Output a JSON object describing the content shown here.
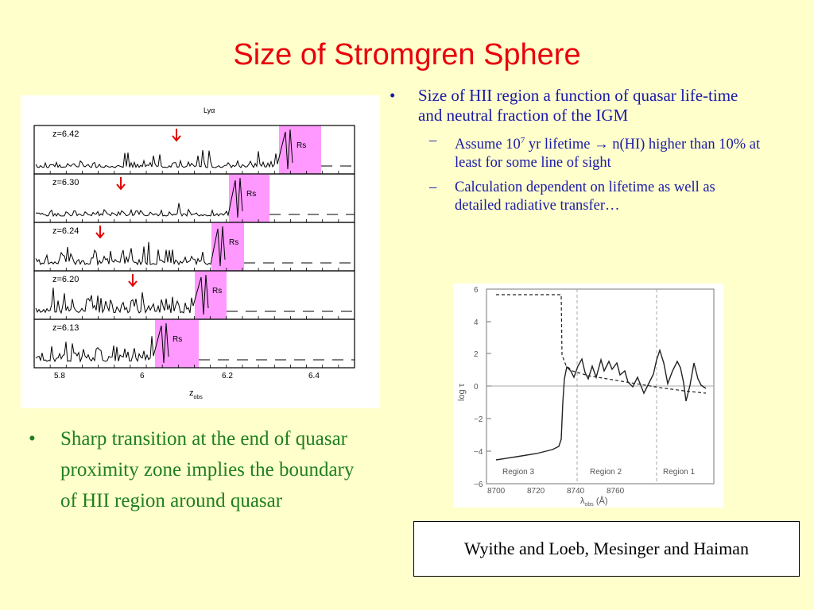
{
  "slide": {
    "title": "Size of Stromgren Sphere",
    "bullets_right": [
      {
        "text": "Size of HII region a function of quasar life-time and neutral fraction of the IGM",
        "subs": [
          {
            "pre": "Assume 10",
            "sup": "7",
            "post": " yr lifetime → n(HI) higher than 10% at least for some line of sight"
          },
          {
            "text": "Calculation dependent on lifetime as well as detailed radiative transfer…"
          }
        ]
      }
    ],
    "bullet_left": "Sharp transition at the end of quasar proximity zone implies the boundary of HII region around quasar",
    "citation": "Wyithe and Loeb, Mesinger and  Haiman",
    "bullet_char": "•",
    "dash_char": "–"
  },
  "left_figure": {
    "top_label": "Lyα",
    "panels": [
      {
        "z_label": "z=6.42",
        "rs": "Rs"
      },
      {
        "z_label": "z=6.30",
        "rs": "Rs"
      },
      {
        "z_label": "z=6.24",
        "rs": "Rs"
      },
      {
        "z_label": "z=6.20",
        "rs": "Rs"
      },
      {
        "z_label": "z=6.13",
        "rs": "Rs"
      }
    ],
    "xticks": [
      "5.8",
      "6",
      "6.2",
      "6.4"
    ],
    "xlabel": "z",
    "xlabel_sub": "obs",
    "colors": {
      "highlight": "#ff99ff",
      "arrow": "#e00000"
    }
  },
  "right_figure": {
    "yticks": [
      "6",
      "4",
      "2",
      "0",
      "−2",
      "−4",
      "−6"
    ],
    "xticks": [
      "8700",
      "8720",
      "8740",
      "8760"
    ],
    "ylabel": "log τ",
    "xlabel": "λ",
    "xlabel_sub": "obs",
    "xlabel_unit": " (Å)",
    "regions": [
      "Region 3",
      "Region 2",
      "Region 1"
    ]
  }
}
